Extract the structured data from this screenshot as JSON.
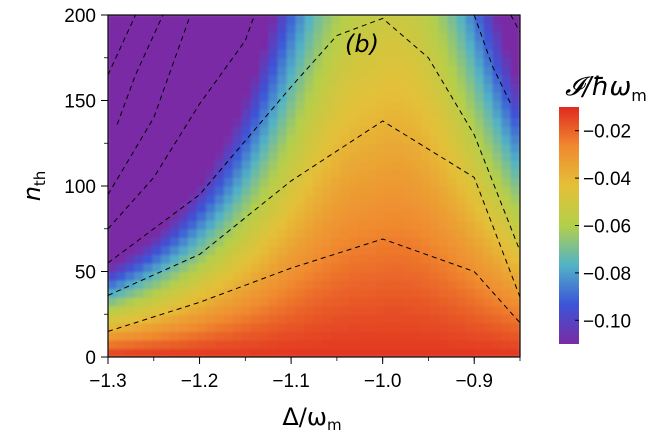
{
  "chart_data": {
    "type": "heatmap",
    "title": "",
    "panel_label": "(b)",
    "xlabel": {
      "main": "Δ/ω",
      "sub": "m"
    },
    "ylabel": {
      "main": "n",
      "sub": "th"
    },
    "xlim": [
      -1.3,
      -0.85
    ],
    "ylim": [
      0,
      200
    ],
    "x_ticks": [
      -1.3,
      -1.2,
      -1.1,
      -1.0,
      -0.9
    ],
    "x_tick_labels": [
      "−1.3",
      "−1.2",
      "−1.1",
      "−1.0",
      "−0.9"
    ],
    "y_ticks": [
      0,
      50,
      100,
      150,
      200
    ],
    "y_tick_labels": [
      "0",
      "50",
      "100",
      "150",
      "200"
    ],
    "colorbar": {
      "label": {
        "main": "𝓘/ħω",
        "sub": "m"
      },
      "range": [
        -0.11,
        -0.01
      ],
      "ticks": [
        -0.02,
        -0.04,
        -0.06,
        -0.08,
        -0.1
      ],
      "tick_labels": [
        "−0.02",
        "−0.04",
        "−0.06",
        "−0.08",
        "−0.10"
      ],
      "colors": [
        "#7a2ba4",
        "#3c54d8",
        "#52b3c6",
        "#b4cf4a",
        "#e4c038",
        "#f08a2f",
        "#e02a20"
      ]
    },
    "contours": {
      "style": "dashed",
      "color": "#000000",
      "lines": [
        {
          "x": [
            -1.3,
            -1.2,
            -1.1,
            -1.0,
            -0.9,
            -0.85
          ],
          "y": [
            15,
            32,
            52,
            69,
            50,
            20
          ]
        },
        {
          "x": [
            -1.3,
            -1.2,
            -1.1,
            -1.0,
            -0.9,
            -0.85
          ],
          "y": [
            36,
            60,
            103,
            138,
            105,
            35
          ]
        },
        {
          "x": [
            -1.3,
            -1.2,
            -1.1,
            -1.05,
            -1.0,
            -0.95,
            -0.9,
            -0.85
          ],
          "y": [
            55,
            95,
            158,
            188,
            198,
            175,
            130,
            62
          ]
        },
        {
          "x": [
            -1.3,
            -1.25,
            -1.2,
            -1.15,
            -1.14
          ],
          "y": [
            75,
            105,
            148,
            185,
            200
          ]
        },
        {
          "x": [
            -1.3,
            -1.25,
            -1.21
          ],
          "y": [
            95,
            140,
            200
          ]
        },
        {
          "x": [
            -1.29,
            -1.27,
            -1.24
          ],
          "y": [
            136,
            165,
            200
          ]
        },
        {
          "x": [
            -1.3,
            -1.27
          ],
          "y": [
            165,
            200
          ]
        },
        {
          "x": [
            -0.9,
            -0.88,
            -0.86
          ],
          "y": [
            200,
            170,
            148
          ]
        },
        {
          "x": [
            -0.86,
            -0.85
          ],
          "y": [
            200,
            190
          ]
        }
      ]
    }
  }
}
